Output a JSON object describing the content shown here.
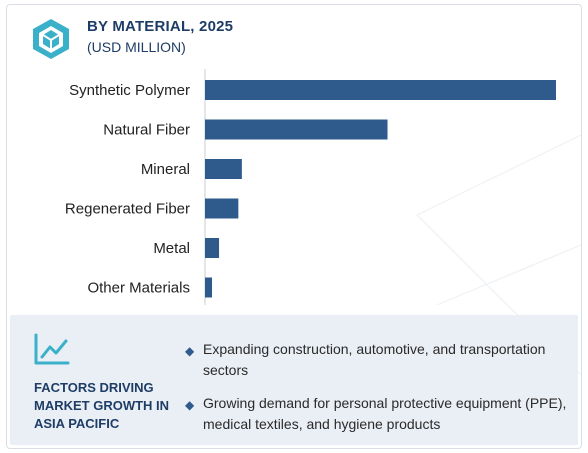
{
  "header": {
    "logo_icon": "hexagon-cube-icon",
    "title": "BY MATERIAL, 2025",
    "subtitle": "(USD MILLION)"
  },
  "chart_data": {
    "type": "bar",
    "orientation": "horizontal",
    "title": "BY MATERIAL, 2025",
    "subtitle": "(USD MILLION)",
    "categories": [
      "Synthetic Polymer",
      "Natural Fiber",
      "Mineral",
      "Regenerated Fiber",
      "Metal",
      "Other Materials"
    ],
    "values": [
      100,
      52,
      10.5,
      9.5,
      4,
      2
    ],
    "bar_color": "#2f5a8c",
    "xlim": [
      0,
      100
    ],
    "grid": false,
    "legend": "none"
  },
  "factors": {
    "icon": "trend-line-icon",
    "title": "FACTORS DRIVING MARKET GROWTH IN ASIA PACIFIC",
    "items": [
      "Expanding construction, automotive, and transportation sectors",
      "Growing demand for personal protective equipment (PPE), medical textiles, and hygiene products"
    ]
  },
  "colors": {
    "accent": "#2f5a8c",
    "title": "#1e3d66",
    "panel_bg": "#eaeef5",
    "logo": "#3ab0c9"
  }
}
